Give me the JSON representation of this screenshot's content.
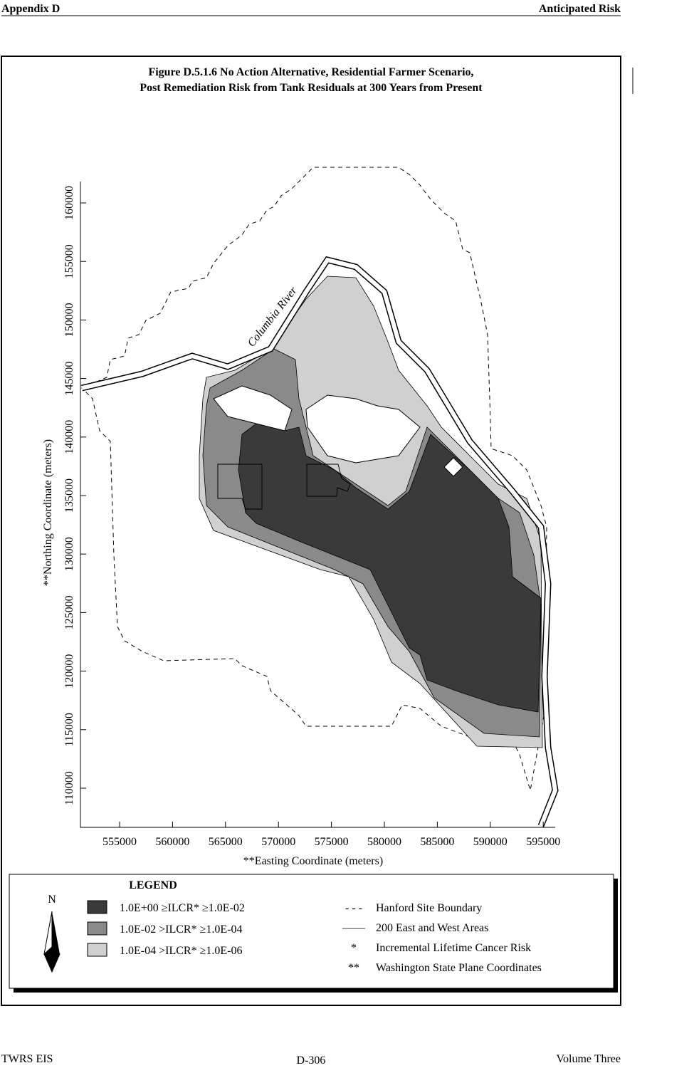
{
  "header": {
    "left": "Appendix D",
    "right": "Anticipated Risk"
  },
  "figure": {
    "title_line1": "Figure D.5.1.6  No Action Alternative, Residential Farmer Scenario,",
    "title_line2": "Post Remediation Risk from Tank Residuals at 300 Years from Present",
    "y_axis": {
      "label": "**Northing Coordinate (meters)",
      "ticks": [
        "110000",
        "115000",
        "120000",
        "125000",
        "130000",
        "135000",
        "140000",
        "145000",
        "150000",
        "155000",
        "160000"
      ]
    },
    "x_axis": {
      "label": "**Easting Coordinate (meters)",
      "ticks": [
        "555000",
        "560000",
        "565000",
        "570000",
        "575000",
        "580000",
        "585000",
        "590000",
        "595000"
      ]
    },
    "river_label": "Columbia River",
    "legend": {
      "title": "LEGEND",
      "north": "N",
      "risk_entries": [
        "1.0E+00 ≥ILCR* ≥1.0E-02",
        "1.0E-02 >ILCR* ≥1.0E-04",
        "1.0E-04 >ILCR* ≥1.0E-06"
      ],
      "symbol_entries": [
        {
          "symbol": "- - -",
          "label": "Hanford Site Boundary"
        },
        {
          "symbol": "——",
          "label": "200 East and West Areas"
        },
        {
          "symbol": "*",
          "label": "Incremental Lifetime Cancer Risk"
        },
        {
          "symbol": "**",
          "label": "Washington State Plane Coordinates"
        }
      ]
    }
  },
  "footer": {
    "left": "TWRS EIS",
    "center": "D-306",
    "right": "Volume Three"
  }
}
